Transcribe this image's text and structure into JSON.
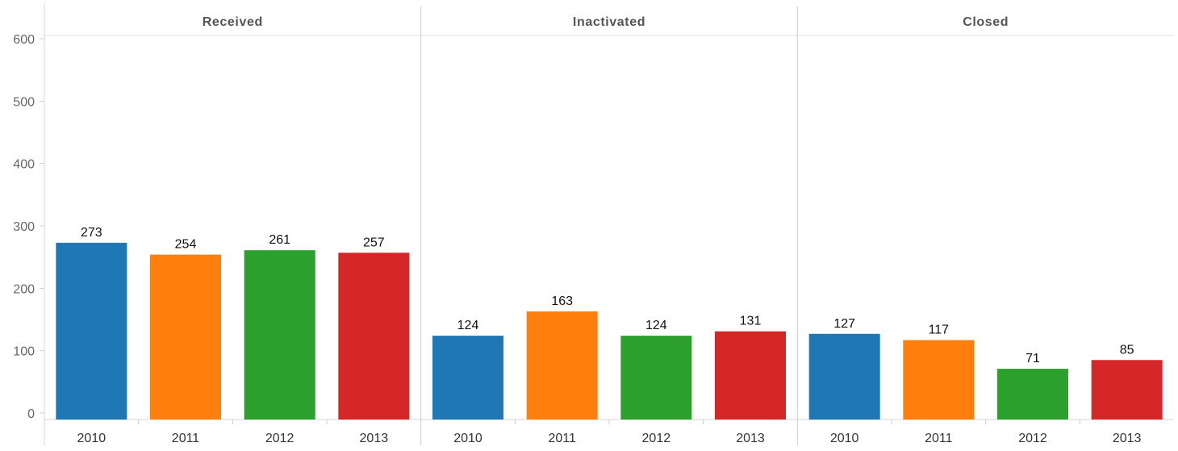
{
  "chart_data": {
    "type": "bar",
    "layout": "small-multiples",
    "ylim": [
      0,
      600
    ],
    "yticks": [
      0,
      100,
      200,
      300,
      400,
      500,
      600
    ],
    "grid": false,
    "legend": "none",
    "categories": [
      "2010",
      "2011",
      "2012",
      "2013"
    ],
    "colors": [
      "#1f77b4",
      "#ff7f0e",
      "#2ca02c",
      "#d62728"
    ],
    "panels": [
      {
        "title": "Received",
        "values": [
          273,
          254,
          261,
          257
        ]
      },
      {
        "title": "Inactivated",
        "values": [
          124,
          163,
          124,
          131
        ]
      },
      {
        "title": "Closed",
        "values": [
          127,
          117,
          71,
          85
        ]
      }
    ]
  }
}
